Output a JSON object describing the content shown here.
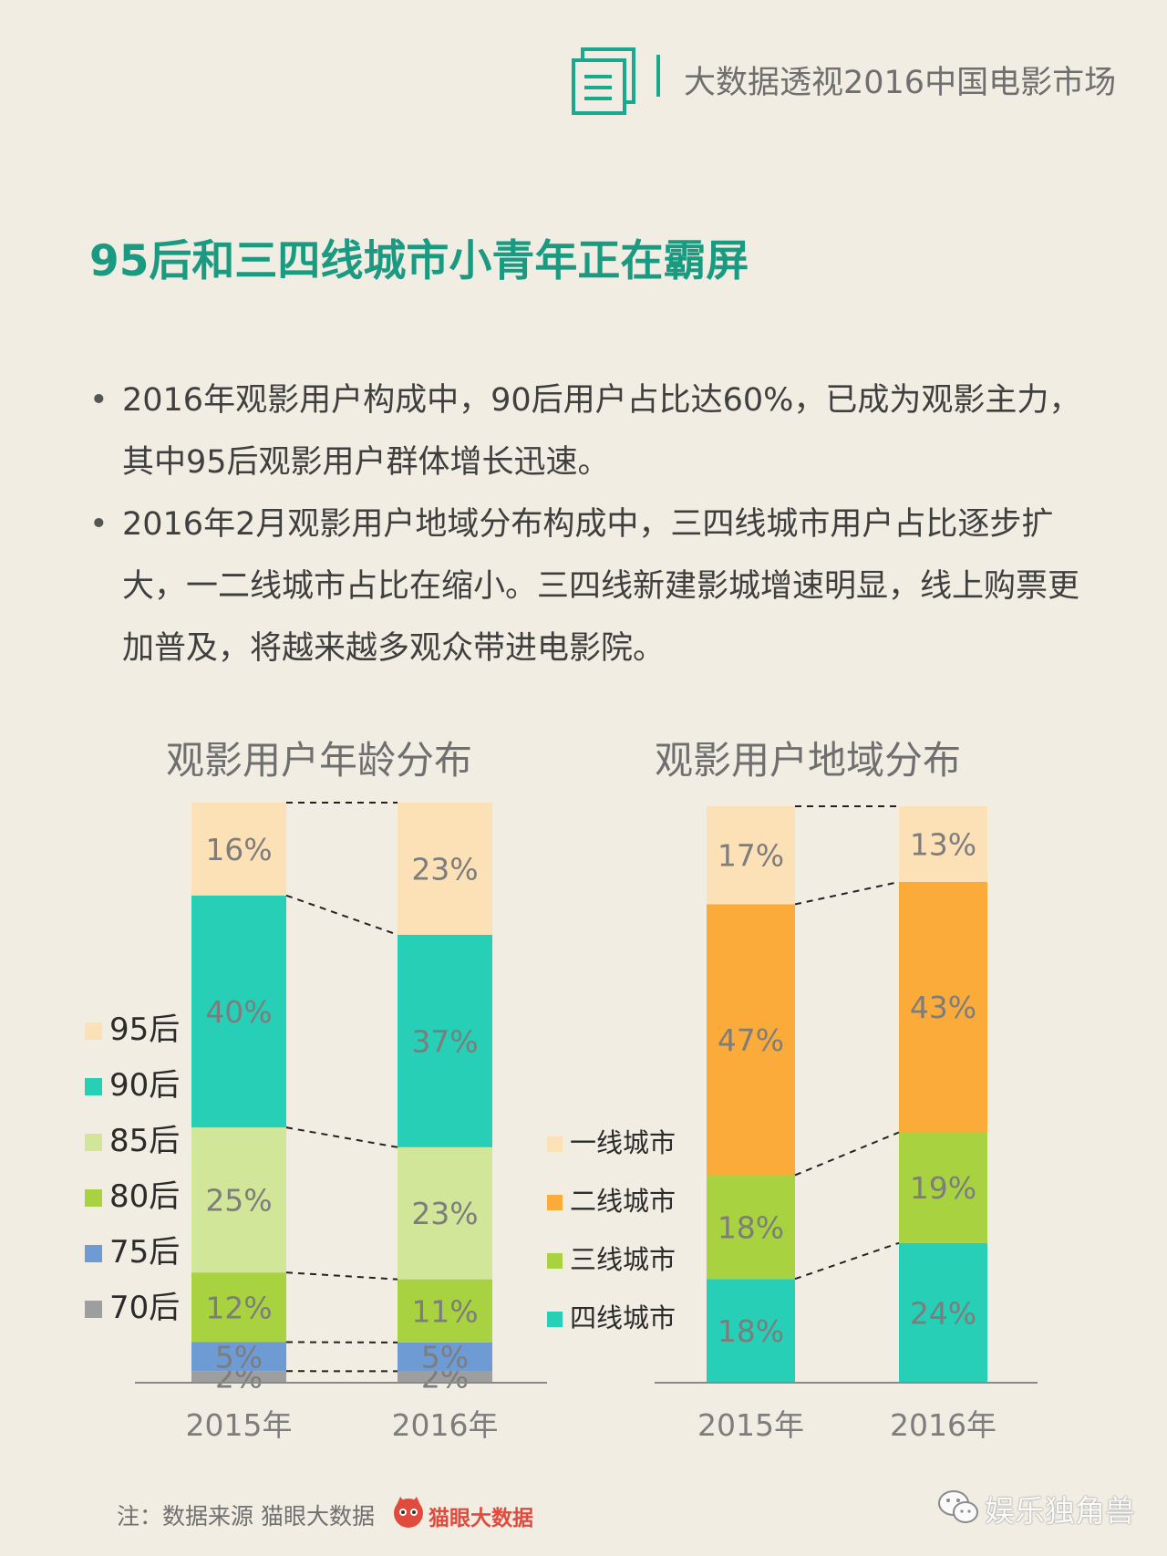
{
  "header": {
    "title": "大数据透视2016中国电影市场",
    "icon": "document-icon"
  },
  "section_title": "95后和三四线城市小青年正在霸屏",
  "bullets": [
    {
      "text": "2016年观影用户构成中，90后用户占比达60%，已成为观影主力，其中95后观影用户群体增长迅速。"
    },
    {
      "text": "2016年2月观影用户地域分布构成中，三四线城市用户占比逐步扩大，一二线城市占比在缩小。三四线新建影城增速明显，线上购票更加普及，将越来越多观众带进电影院。"
    }
  ],
  "bullet_symbol": "•",
  "chart_data": [
    {
      "type": "bar",
      "stacked": true,
      "title": "观影用户年龄分布",
      "categories": [
        "2015年",
        "2016年"
      ],
      "series": [
        {
          "name": "70后",
          "values": [
            2,
            2
          ],
          "color": "#9e9e9e"
        },
        {
          "name": "75后",
          "values": [
            5,
            5
          ],
          "color": "#6e9bd3"
        },
        {
          "name": "80后",
          "values": [
            12,
            11
          ],
          "color": "#a8d23f"
        },
        {
          "name": "85后",
          "values": [
            25,
            23
          ],
          "color": "#d2e69a"
        },
        {
          "name": "90后",
          "values": [
            40,
            37
          ],
          "color": "#27cfb6"
        },
        {
          "name": "95后",
          "values": [
            16,
            23
          ],
          "color": "#fde1b6"
        }
      ],
      "legend_order": [
        "95后",
        "90后",
        "85后",
        "80后",
        "75后",
        "70后"
      ],
      "legend_position": "left",
      "connectors": true
    },
    {
      "type": "bar",
      "stacked": true,
      "title": "观影用户地域分布",
      "categories": [
        "2015年",
        "2016年"
      ],
      "series": [
        {
          "name": "四线城市",
          "values": [
            18,
            24
          ],
          "color": "#27cfb6"
        },
        {
          "name": "三线城市",
          "values": [
            18,
            19
          ],
          "color": "#a8d23f"
        },
        {
          "name": "二线城市",
          "values": [
            47,
            43
          ],
          "color": "#fbab3a"
        },
        {
          "name": "一线城市",
          "values": [
            17,
            13
          ],
          "color": "#fde1b6"
        }
      ],
      "legend_order": [
        "一线城市",
        "二线城市",
        "三线城市",
        "四线城市"
      ],
      "legend_position": "left",
      "connectors": true
    }
  ],
  "footer": {
    "note": "注：数据来源 猫眼大数据",
    "brand": "猫眼大数据",
    "wechat": "娱乐独角兽"
  }
}
